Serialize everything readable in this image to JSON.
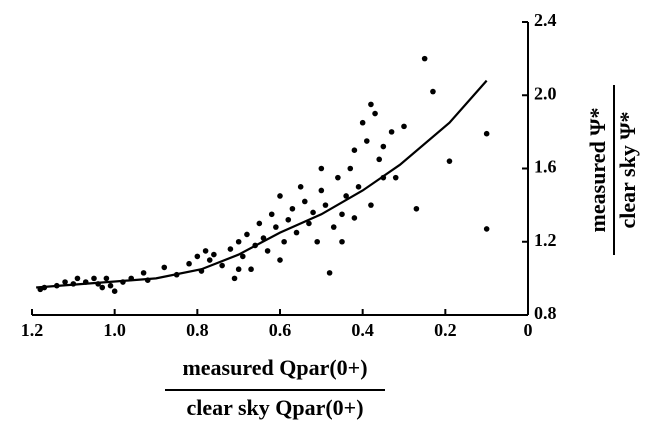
{
  "chart_data": {
    "type": "scatter",
    "x_label": {
      "numerator": "measured Qpar(0+)",
      "denominator": "clear sky Qpar(0+)"
    },
    "y_label": {
      "numerator": "measured Ψ*",
      "denominator": "clear sky Ψ*"
    },
    "xlim": [
      1.2,
      0
    ],
    "ylim": [
      0.8,
      2.4
    ],
    "xticks": [
      1.2,
      {
        "value": 1.0,
        "label": "1.0"
      },
      0.8,
      0.6,
      0.4,
      0.2,
      0
    ],
    "yticks": [
      0.8,
      1.2,
      1.6,
      {
        "value": 2.0,
        "label": "2.0"
      },
      2.4
    ],
    "series": [
      {
        "type": "scatter",
        "color": "#000000",
        "x": [
          1.18,
          1.17,
          1.14,
          1.12,
          1.1,
          1.09,
          1.07,
          1.05,
          1.04,
          1.03,
          1.02,
          1.01,
          1.0,
          0.98,
          0.96,
          0.93,
          0.92,
          0.88,
          0.85,
          0.82,
          0.8,
          0.79,
          0.78,
          0.77,
          0.76,
          0.74,
          0.72,
          0.71,
          0.7,
          0.69,
          0.68,
          0.67,
          0.66,
          0.65,
          0.64,
          0.63,
          0.62,
          0.61,
          0.6,
          0.59,
          0.58,
          0.57,
          0.56,
          0.55,
          0.54,
          0.53,
          0.52,
          0.51,
          0.5,
          0.49,
          0.48,
          0.47,
          0.46,
          0.45,
          0.44,
          0.43,
          0.42,
          0.41,
          0.4,
          0.39,
          0.38,
          0.37,
          0.36,
          0.35,
          0.33,
          0.32,
          0.3,
          0.27,
          0.25,
          0.23,
          0.19,
          0.1,
          0.1,
          0.42,
          0.45,
          0.5,
          0.38,
          0.35,
          0.6,
          0.7
        ],
        "values": [
          0.94,
          0.95,
          0.96,
          0.98,
          0.97,
          1.0,
          0.98,
          1.0,
          0.97,
          0.95,
          1.0,
          0.96,
          0.93,
          0.98,
          1.0,
          1.03,
          0.99,
          1.06,
          1.02,
          1.08,
          1.12,
          1.04,
          1.15,
          1.1,
          1.13,
          1.07,
          1.16,
          1.0,
          1.2,
          1.12,
          1.24,
          1.05,
          1.18,
          1.3,
          1.22,
          1.15,
          1.35,
          1.28,
          1.45,
          1.2,
          1.32,
          1.38,
          1.25,
          1.5,
          1.42,
          1.3,
          1.36,
          1.2,
          1.48,
          1.4,
          1.03,
          1.28,
          1.55,
          1.35,
          1.45,
          1.6,
          1.7,
          1.5,
          1.85,
          1.75,
          1.4,
          1.9,
          1.65,
          1.72,
          1.8,
          1.55,
          1.83,
          1.38,
          2.2,
          2.02,
          1.64,
          1.79,
          1.27,
          1.33,
          1.2,
          1.6,
          1.95,
          1.55,
          1.1,
          1.05
        ]
      },
      {
        "type": "line",
        "color": "#000000",
        "x": [
          1.19,
          0.9,
          0.79,
          0.7,
          0.6,
          0.5,
          0.4,
          0.31,
          0.19,
          0.1
        ],
        "values": [
          0.95,
          1.0,
          1.05,
          1.13,
          1.25,
          1.35,
          1.48,
          1.62,
          1.85,
          2.08
        ]
      }
    ]
  }
}
